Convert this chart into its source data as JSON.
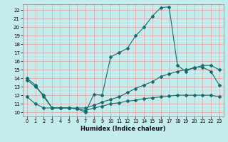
{
  "xlabel": "Humidex (Indice chaleur)",
  "background_color": "#c5ecec",
  "grid_color": "#e8a0a0",
  "line_color": "#1a6b6b",
  "xlim": [
    -0.5,
    23.5
  ],
  "ylim": [
    9.5,
    22.7
  ],
  "yticks": [
    10,
    11,
    12,
    13,
    14,
    15,
    16,
    17,
    18,
    19,
    20,
    21,
    22
  ],
  "xticks": [
    0,
    1,
    2,
    3,
    4,
    5,
    6,
    7,
    8,
    9,
    10,
    11,
    12,
    13,
    14,
    15,
    16,
    17,
    18,
    19,
    20,
    21,
    22,
    23
  ],
  "line1_x": [
    0,
    1,
    2,
    3,
    4,
    5,
    6,
    7,
    8,
    9,
    10,
    11,
    12,
    13,
    14,
    15,
    16,
    17,
    18,
    19,
    20,
    21,
    22,
    23
  ],
  "line1_y": [
    14.0,
    13.2,
    11.8,
    10.5,
    10.5,
    10.5,
    10.4,
    10.0,
    12.1,
    12.0,
    16.5,
    17.0,
    17.5,
    19.0,
    20.0,
    21.3,
    22.3,
    22.4,
    15.5,
    14.8,
    15.3,
    15.3,
    14.8,
    13.2
  ],
  "line2_x": [
    0,
    1,
    2,
    3,
    4,
    5,
    6,
    7,
    8,
    9,
    10,
    11,
    12,
    13,
    14,
    15,
    16,
    17,
    18,
    19,
    20,
    21,
    22,
    23
  ],
  "line2_y": [
    13.8,
    13.0,
    12.0,
    10.5,
    10.5,
    10.5,
    10.5,
    10.5,
    10.8,
    11.2,
    11.5,
    11.8,
    12.3,
    12.8,
    13.2,
    13.6,
    14.2,
    14.5,
    14.8,
    15.0,
    15.2,
    15.5,
    15.5,
    15.0
  ],
  "line3_x": [
    0,
    1,
    2,
    3,
    4,
    5,
    6,
    7,
    8,
    9,
    10,
    11,
    12,
    13,
    14,
    15,
    16,
    17,
    18,
    19,
    20,
    21,
    22,
    23
  ],
  "line3_y": [
    11.8,
    11.0,
    10.5,
    10.5,
    10.5,
    10.5,
    10.4,
    10.2,
    10.5,
    10.7,
    11.0,
    11.1,
    11.3,
    11.4,
    11.6,
    11.7,
    11.8,
    11.9,
    12.0,
    12.0,
    12.0,
    12.0,
    12.0,
    11.8
  ]
}
